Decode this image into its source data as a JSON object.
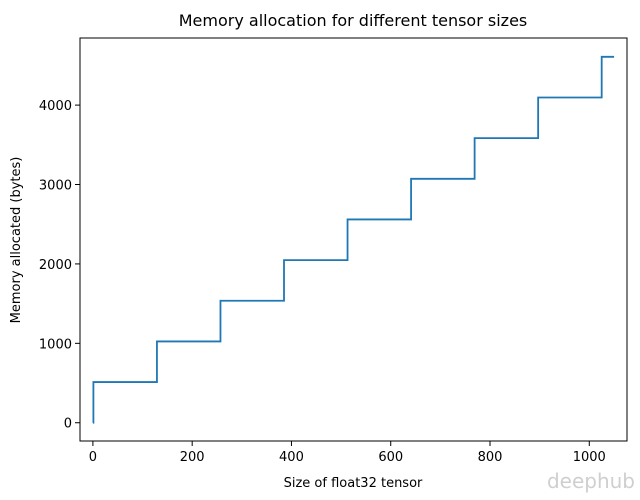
{
  "chart_data": {
    "type": "line",
    "title": "Memory allocation for different tensor sizes",
    "xlabel": "Size of float32 tensor",
    "ylabel": "Memory allocated (bytes)",
    "xlim": [
      -26,
      1076
    ],
    "ylim": [
      -230,
      4845
    ],
    "xticks": [
      0,
      200,
      400,
      600,
      800,
      1000
    ],
    "yticks": [
      0,
      1000,
      2000,
      3000,
      4000
    ],
    "grid": false,
    "series": [
      {
        "color": "#1f77b4",
        "step": "post",
        "x": [
          0,
          1,
          129,
          257,
          385,
          513,
          641,
          769,
          897,
          1025,
          1050
        ],
        "y": [
          0,
          512,
          1024,
          1536,
          2048,
          2560,
          3072,
          3584,
          4096,
          4608,
          4608
        ]
      }
    ]
  },
  "watermark": "deephub"
}
